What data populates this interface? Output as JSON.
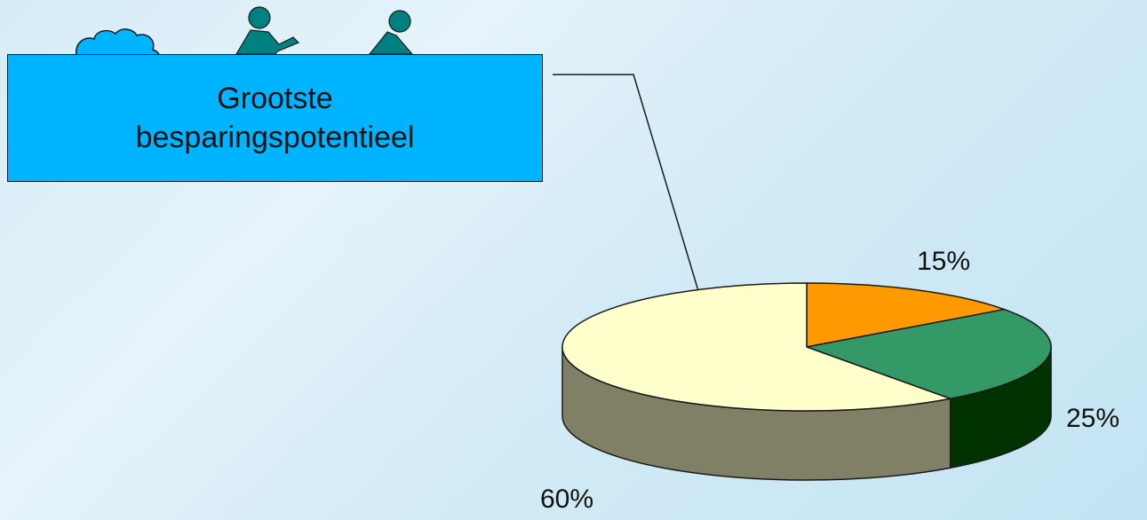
{
  "callout": {
    "line1": "Grootste",
    "line2": "besparingspotentieel",
    "fill": "#00b4ff"
  },
  "icons": [
    "cloud-icon",
    "person-pointing-icon",
    "person-icon"
  ],
  "chart_data": {
    "type": "pie",
    "style": "3d-exploded",
    "slices": [
      {
        "label": "15%",
        "value": 15,
        "top_color": "#ff9900",
        "side_color": "#a65f00"
      },
      {
        "label": "25%",
        "value": 25,
        "top_color": "#339966",
        "side_color": "#003300"
      },
      {
        "label": "60%",
        "value": 60,
        "top_color": "#ffffcc",
        "side_color": "#808066"
      }
    ],
    "highlighted_slice": "60%"
  }
}
